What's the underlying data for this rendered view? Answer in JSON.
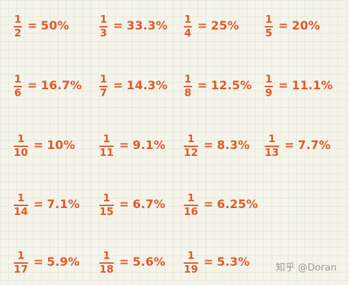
{
  "fractions": [
    {
      "numerator": "1",
      "denominator": "2",
      "percent": "50%"
    },
    {
      "numerator": "1",
      "denominator": "3",
      "percent": "33.3%"
    },
    {
      "numerator": "1",
      "denominator": "4",
      "percent": "25%"
    },
    {
      "numerator": "1",
      "denominator": "5",
      "percent": "20%"
    },
    {
      "numerator": "1",
      "denominator": "6",
      "percent": "16.7%"
    },
    {
      "numerator": "1",
      "denominator": "7",
      "percent": "14.3%"
    },
    {
      "numerator": "1",
      "denominator": "8",
      "percent": "12.5%"
    },
    {
      "numerator": "1",
      "denominator": "9",
      "percent": "11.1%"
    },
    {
      "numerator": "1",
      "denominator": "10",
      "percent": "10%"
    },
    {
      "numerator": "1",
      "denominator": "11",
      "percent": "9.1%"
    },
    {
      "numerator": "1",
      "denominator": "12",
      "percent": "8.3%"
    },
    {
      "numerator": "1",
      "denominator": "13",
      "percent": "7.7%"
    },
    {
      "numerator": "1",
      "denominator": "14",
      "percent": "7.1%"
    },
    {
      "numerator": "1",
      "denominator": "15",
      "percent": "6.7%"
    },
    {
      "numerator": "1",
      "denominator": "16",
      "percent": "6.25%"
    },
    {
      "numerator": "1",
      "denominator": "17",
      "percent": "5.9%"
    },
    {
      "numerator": "1",
      "denominator": "18",
      "percent": "5.6%"
    },
    {
      "numerator": "1",
      "denominator": "19",
      "percent": "5.3%"
    }
  ],
  "equals_sign": "=",
  "watermark": "知乎 @Doran",
  "colors": {
    "text": "#e05a2b",
    "background": "#f6f4ea",
    "watermark": "#9a9a9a"
  }
}
